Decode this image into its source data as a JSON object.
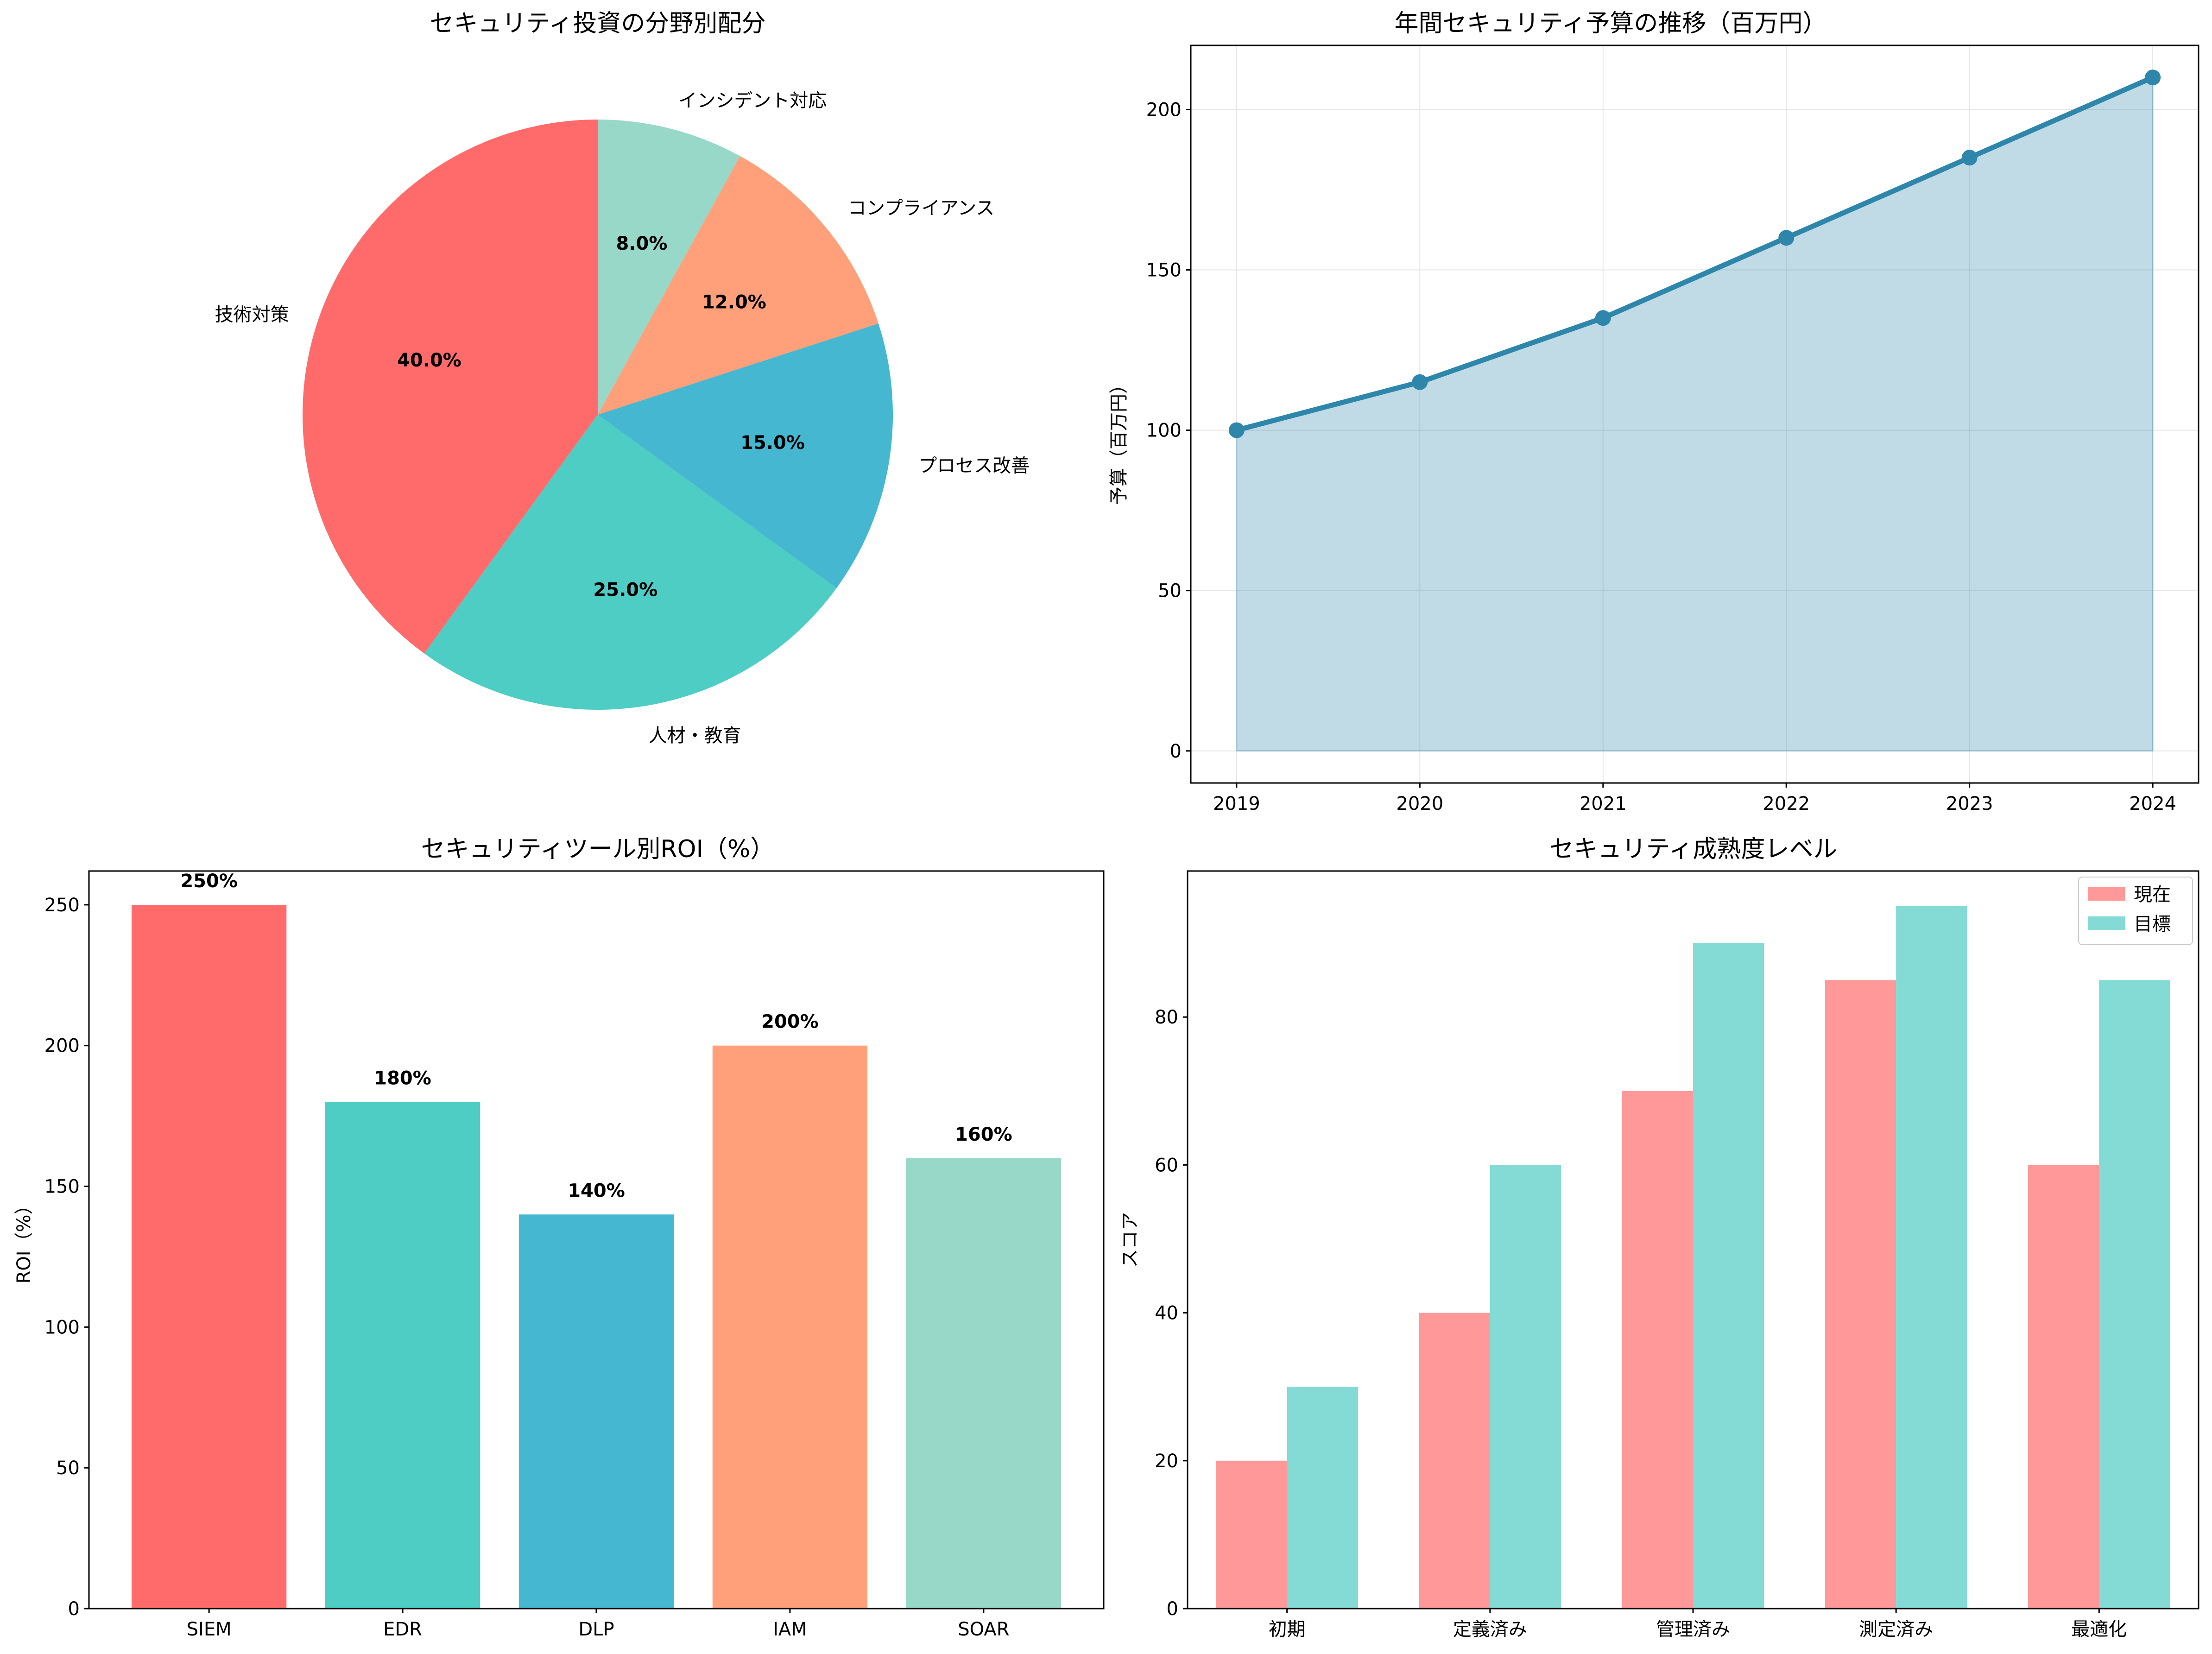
{
  "colors": {
    "palette": [
      "#FF6B6B",
      "#4ECDC4",
      "#45B7D1",
      "#FFA07A",
      "#98D8C8"
    ],
    "line": "#2E86AB",
    "area": "#A3C7D9",
    "current": "#FF9999",
    "target": "#84DAD4",
    "grid": "#E6E6E6"
  },
  "chart_data": [
    {
      "type": "pie",
      "title": "セキュリティ投資の分野別配分",
      "labels": [
        "技術対策",
        "人材・教育",
        "プロセス改善",
        "コンプライアンス",
        "インシデント対応"
      ],
      "values": [
        40,
        25,
        15,
        12,
        8
      ],
      "value_labels": [
        "40.0%",
        "25.0%",
        "15.0%",
        "12.0%",
        "8.0%"
      ],
      "start_angle_deg": 90,
      "direction": "counterclockwise"
    },
    {
      "type": "area",
      "title": "年間セキュリティ予算の推移（百万円）",
      "x": [
        2019,
        2020,
        2021,
        2022,
        2023,
        2024
      ],
      "y": [
        100,
        115,
        135,
        160,
        185,
        210
      ],
      "xlabel": "",
      "ylabel": "予算（百万円）",
      "ylim": [
        -10,
        220
      ],
      "yticks": [
        0,
        50,
        100,
        150,
        200
      ],
      "grid": true
    },
    {
      "type": "bar",
      "title": "セキュリティツール別ROI（%）",
      "categories": [
        "SIEM",
        "EDR",
        "DLP",
        "IAM",
        "SOAR"
      ],
      "values": [
        250,
        180,
        140,
        200,
        160
      ],
      "value_labels": [
        "250%",
        "180%",
        "140%",
        "200%",
        "160%"
      ],
      "xlabel": "",
      "ylabel": "ROI（%）",
      "ylim": [
        0,
        262
      ],
      "yticks": [
        0,
        50,
        100,
        150,
        200,
        250
      ]
    },
    {
      "type": "bar",
      "title": "セキュリティ成熟度レベル",
      "categories": [
        "初期",
        "定義済み",
        "管理済み",
        "測定済み",
        "最適化"
      ],
      "series": [
        {
          "name": "現在",
          "values": [
            20,
            40,
            70,
            85,
            60
          ]
        },
        {
          "name": "目標",
          "values": [
            30,
            60,
            90,
            95,
            85
          ]
        }
      ],
      "xlabel": "",
      "ylabel": "スコア",
      "ylim": [
        0,
        99.75
      ],
      "yticks": [
        0,
        20,
        40,
        60,
        80
      ],
      "legend": "top-right"
    }
  ]
}
